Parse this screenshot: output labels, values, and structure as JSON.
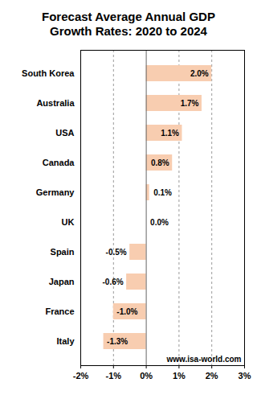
{
  "chart_data": {
    "type": "bar",
    "orientation": "horizontal",
    "title": "Forecast Average Annual GDP Growth Rates: 2020 to 2024",
    "caption": "www.isa-world.com",
    "categories": [
      "South Korea",
      "Australia",
      "USA",
      "Canada",
      "Germany",
      "UK",
      "Spain",
      "Japan",
      "France",
      "Italy"
    ],
    "values": [
      2.0,
      1.7,
      1.1,
      0.8,
      0.1,
      0.0,
      -0.5,
      -0.6,
      -1.0,
      -1.3
    ],
    "value_labels": [
      "2.0%",
      "1.7%",
      "1.1%",
      "0.8%",
      "0.1%",
      "0.0%",
      "-0.5%",
      "-0.6%",
      "-1.0%",
      "-1.3%"
    ],
    "data_labels": true,
    "color": "#f8cdb0",
    "xlim": [
      -2,
      3
    ],
    "xticks": [
      {
        "value": -2,
        "label": "-2%"
      },
      {
        "value": -1,
        "label": "-1%"
      },
      {
        "value": 0,
        "label": "0%"
      },
      {
        "value": 1,
        "label": "1%"
      },
      {
        "value": 2,
        "label": "2%"
      },
      {
        "value": 3,
        "label": "3%"
      }
    ],
    "grid": true
  }
}
